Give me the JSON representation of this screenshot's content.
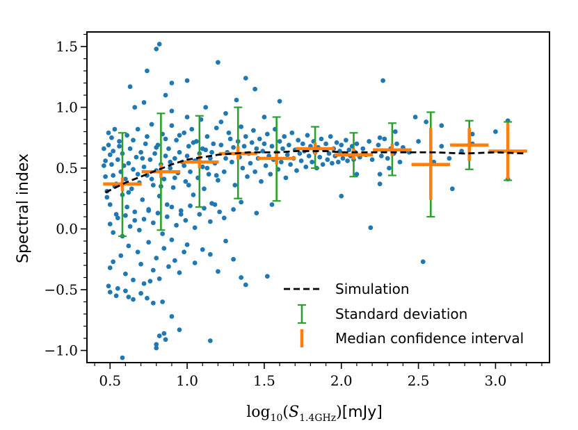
{
  "chart_data": {
    "type": "scatter",
    "title": "",
    "xlabel": "log10(S1.4GHz)[mJy]",
    "xlabel_parts": {
      "main": "log",
      "base": "10",
      "paren_open": "(",
      "symbol": "S",
      "sub": "1.4GHz",
      "paren_close": ")",
      "unit": "[mJy]"
    },
    "ylabel": "Spectral index",
    "xlim": [
      0.35,
      3.35
    ],
    "ylim": [
      -1.1,
      1.62
    ],
    "x_ticks": [
      0.5,
      1.0,
      1.5,
      2.0,
      2.5,
      3.0
    ],
    "x_tick_labels": [
      "0.5",
      "1.0",
      "1.5",
      "2.0",
      "2.5",
      "3.0"
    ],
    "y_ticks": [
      -1.0,
      -0.5,
      0.0,
      0.5,
      1.0,
      1.5
    ],
    "y_tick_labels": [
      "−1.0",
      "−0.5",
      "0.0",
      "0.5",
      "1.0",
      "1.5"
    ],
    "grid": false,
    "legend_position": "lower-right",
    "colors": {
      "points": "#1f77b4",
      "simulation": "#000000",
      "std": "#2ca02c",
      "median": "#ff7f0e"
    },
    "scatter_points": [
      [
        0.46,
        0.66
      ],
      [
        0.47,
        0.56
      ],
      [
        0.48,
        0.31
      ],
      [
        0.48,
        0.26
      ],
      [
        0.49,
        0.69
      ],
      [
        0.5,
        0.2
      ],
      [
        0.5,
        0.61
      ],
      [
        0.51,
        0.75
      ],
      [
        0.51,
        0.53
      ],
      [
        0.52,
        0.44
      ],
      [
        0.53,
        0.35
      ],
      [
        0.53,
        0.82
      ],
      [
        0.54,
        0.12
      ],
      [
        0.55,
        0.57
      ],
      [
        0.56,
        0.72
      ],
      [
        0.57,
        0.47
      ],
      [
        0.58,
        0.28
      ],
      [
        0.58,
        0.62
      ],
      [
        0.6,
        0.41
      ],
      [
        0.61,
        0.77
      ],
      [
        0.61,
        0.18
      ],
      [
        0.62,
        0.54
      ],
      [
        0.63,
        0.66
      ],
      [
        0.64,
        0.33
      ],
      [
        0.65,
        0.49
      ],
      [
        0.66,
        0.07
      ],
      [
        0.67,
        0.59
      ],
      [
        0.68,
        0.82
      ],
      [
        0.69,
        0.38
      ],
      [
        0.7,
        0.63
      ],
      [
        0.71,
        0.24
      ],
      [
        0.72,
        0.51
      ],
      [
        0.73,
        0.7
      ],
      [
        0.74,
        0.44
      ],
      [
        0.75,
        0.15
      ],
      [
        0.76,
        0.57
      ],
      [
        0.77,
        0.86
      ],
      [
        0.78,
        0.36
      ],
      [
        0.79,
        0.62
      ],
      [
        0.8,
        0.48
      ],
      [
        0.81,
        0.69
      ],
      [
        0.82,
        0.27
      ],
      [
        0.83,
        0.53
      ],
      [
        0.84,
        0.78
      ],
      [
        0.85,
        0.41
      ],
      [
        0.86,
        0.6
      ],
      [
        0.87,
        0.2
      ],
      [
        0.88,
        0.66
      ],
      [
        0.89,
        0.5
      ],
      [
        0.9,
        0.85
      ],
      [
        0.91,
        0.34
      ],
      [
        0.92,
        0.58
      ],
      [
        0.93,
        0.73
      ],
      [
        0.94,
        0.46
      ],
      [
        0.95,
        0.63
      ],
      [
        0.96,
        0.12
      ],
      [
        0.97,
        0.55
      ],
      [
        0.98,
        0.79
      ],
      [
        0.99,
        0.39
      ],
      [
        1.0,
        0.6
      ],
      [
        1.01,
        0.68
      ],
      [
        1.02,
        0.47
      ],
      [
        1.03,
        0.82
      ],
      [
        1.04,
        0.28
      ],
      [
        1.05,
        0.56
      ],
      [
        1.06,
        0.72
      ],
      [
        1.07,
        0.42
      ],
      [
        1.08,
        0.62
      ],
      [
        1.09,
        0.9
      ],
      [
        1.1,
        0.51
      ],
      [
        1.11,
        0.33
      ],
      [
        1.12,
        0.65
      ],
      [
        1.13,
        0.76
      ],
      [
        1.14,
        0.45
      ],
      [
        1.15,
        0.58
      ],
      [
        1.16,
        0.21
      ],
      [
        1.17,
        0.7
      ],
      [
        1.18,
        0.54
      ],
      [
        1.19,
        0.83
      ],
      [
        1.2,
        0.4
      ],
      [
        0.46,
        0.52
      ],
      [
        0.47,
        0.43
      ],
      [
        0.49,
        0.79
      ],
      [
        0.52,
        0.64
      ],
      [
        0.54,
        0.37
      ],
      [
        0.56,
        0.68
      ],
      [
        0.59,
        0.52
      ],
      [
        0.62,
        0.3
      ],
      [
        0.65,
        0.73
      ],
      [
        0.68,
        0.45
      ],
      [
        0.71,
        0.58
      ],
      [
        0.74,
        0.76
      ],
      [
        0.77,
        0.41
      ],
      [
        0.8,
        0.67
      ],
      [
        0.83,
        0.35
      ],
      [
        0.86,
        0.74
      ],
      [
        0.89,
        0.55
      ],
      [
        0.92,
        0.42
      ],
      [
        0.95,
        0.77
      ],
      [
        0.98,
        0.52
      ],
      [
        1.01,
        0.36
      ],
      [
        1.04,
        0.71
      ],
      [
        1.07,
        0.57
      ],
      [
        1.1,
        0.66
      ],
      [
        1.13,
        0.5
      ],
      [
        1.16,
        0.63
      ],
      [
        1.19,
        0.44
      ],
      [
        1.22,
        0.69
      ],
      [
        1.25,
        0.58
      ],
      [
        1.28,
        0.74
      ],
      [
        1.22,
        0.88
      ],
      [
        1.24,
        0.47
      ],
      [
        1.26,
        0.63
      ],
      [
        1.27,
        0.79
      ],
      [
        1.29,
        0.55
      ],
      [
        1.3,
        0.67
      ],
      [
        1.31,
        0.36
      ],
      [
        1.33,
        0.72
      ],
      [
        1.34,
        0.59
      ],
      [
        1.35,
        0.84
      ],
      [
        1.36,
        0.5
      ],
      [
        1.37,
        0.68
      ],
      [
        1.38,
        0.76
      ],
      [
        1.39,
        0.43
      ],
      [
        1.4,
        0.62
      ],
      [
        1.41,
        0.54
      ],
      [
        1.42,
        0.71
      ],
      [
        1.43,
        0.81
      ],
      [
        1.44,
        0.47
      ],
      [
        1.45,
        0.66
      ],
      [
        1.46,
        0.58
      ],
      [
        1.47,
        0.74
      ],
      [
        1.48,
        0.39
      ],
      [
        1.49,
        0.64
      ],
      [
        1.5,
        0.7
      ],
      [
        1.51,
        0.52
      ],
      [
        1.52,
        0.78
      ],
      [
        1.53,
        0.6
      ],
      [
        1.54,
        0.45
      ],
      [
        1.55,
        0.68
      ],
      [
        1.56,
        0.57
      ],
      [
        1.57,
        0.82
      ],
      [
        1.58,
        0.63
      ],
      [
        1.59,
        0.49
      ],
      [
        1.6,
        0.72
      ],
      [
        1.61,
        0.55
      ],
      [
        1.62,
        0.66
      ],
      [
        1.63,
        0.76
      ],
      [
        1.64,
        0.42
      ],
      [
        1.65,
        0.61
      ],
      [
        1.66,
        0.69
      ],
      [
        1.67,
        0.53
      ],
      [
        1.68,
        0.79
      ],
      [
        1.69,
        0.58
      ],
      [
        1.7,
        0.65
      ],
      [
        1.71,
        0.48
      ],
      [
        1.72,
        0.73
      ],
      [
        1.73,
        0.62
      ],
      [
        1.74,
        0.56
      ],
      [
        1.75,
        0.7
      ],
      [
        1.76,
        0.64
      ],
      [
        1.77,
        0.51
      ],
      [
        1.78,
        0.77
      ],
      [
        1.79,
        0.6
      ],
      [
        1.8,
        0.68
      ],
      [
        1.81,
        0.55
      ],
      [
        1.82,
        0.72
      ],
      [
        1.83,
        0.63
      ],
      [
        1.84,
        0.5
      ],
      [
        1.85,
        0.67
      ],
      [
        1.86,
        0.59
      ],
      [
        1.87,
        0.74
      ],
      [
        1.88,
        0.53
      ],
      [
        1.89,
        0.65
      ],
      [
        1.9,
        0.7
      ],
      [
        1.91,
        0.57
      ],
      [
        1.92,
        0.62
      ],
      [
        1.93,
        0.76
      ],
      [
        1.94,
        0.54
      ],
      [
        1.95,
        0.66
      ],
      [
        1.96,
        0.6
      ],
      [
        1.97,
        0.71
      ],
      [
        1.98,
        0.55
      ],
      [
        1.99,
        0.64
      ],
      [
        2.0,
        0.69
      ],
      [
        2.01,
        0.58
      ],
      [
        2.02,
        0.62
      ],
      [
        2.03,
        0.73
      ],
      [
        2.04,
        0.56
      ],
      [
        2.05,
        0.65
      ],
      [
        2.06,
        0.6
      ],
      [
        2.07,
        0.68
      ],
      [
        2.08,
        0.57
      ],
      [
        2.09,
        0.63
      ],
      [
        2.1,
        0.7
      ],
      [
        2.12,
        0.59
      ],
      [
        2.14,
        0.66
      ],
      [
        2.16,
        0.61
      ],
      [
        2.18,
        0.72
      ],
      [
        2.2,
        0.57
      ],
      [
        2.22,
        0.64
      ],
      [
        2.24,
        0.69
      ],
      [
        2.26,
        0.6
      ],
      [
        2.28,
        0.74
      ],
      [
        2.3,
        0.58
      ],
      [
        2.32,
        0.66
      ],
      [
        2.34,
        0.62
      ],
      [
        2.36,
        0.7
      ],
      [
        2.38,
        0.55
      ],
      [
        2.4,
        0.67
      ],
      [
        2.25,
        0.45
      ],
      [
        2.31,
        0.5
      ],
      [
        2.35,
        0.8
      ],
      [
        2.44,
        0.63
      ],
      [
        2.5,
        0.72
      ],
      [
        2.6,
        0.55
      ],
      [
        2.65,
        0.68
      ],
      [
        2.7,
        0.58
      ],
      [
        2.78,
        0.64
      ],
      [
        2.85,
        0.7
      ],
      [
        0.5,
        0.04
      ],
      [
        0.52,
        -0.03
      ],
      [
        0.55,
        0.09
      ],
      [
        0.58,
        -0.06
      ],
      [
        0.6,
        0.11
      ],
      [
        0.63,
        0.02
      ],
      [
        0.66,
        0.14
      ],
      [
        0.69,
        -0.01
      ],
      [
        0.72,
        0.08
      ],
      [
        0.75,
        0.16
      ],
      [
        0.78,
        0.05
      ],
      [
        0.81,
        0.13
      ],
      [
        0.84,
        -0.04
      ],
      [
        0.87,
        0.1
      ],
      [
        0.9,
        0.18
      ],
      [
        0.93,
        0.03
      ],
      [
        0.96,
        0.15
      ],
      [
        0.99,
        0.07
      ],
      [
        1.02,
        0.19
      ],
      [
        1.05,
        0.01
      ],
      [
        1.08,
        0.12
      ],
      [
        1.11,
        0.17
      ],
      [
        1.15,
        0.06
      ],
      [
        1.18,
        0.2
      ],
      [
        1.21,
        0.14
      ],
      [
        1.24,
        0.09
      ],
      [
        1.3,
        0.16
      ],
      [
        1.35,
        0.22
      ],
      [
        1.45,
        0.13
      ],
      [
        1.55,
        0.2
      ],
      [
        0.5,
        -0.32
      ],
      [
        0.52,
        -0.27
      ],
      [
        0.55,
        -0.49
      ],
      [
        0.57,
        -0.22
      ],
      [
        0.6,
        -0.37
      ],
      [
        0.62,
        -0.14
      ],
      [
        0.65,
        -0.42
      ],
      [
        0.68,
        -0.19
      ],
      [
        0.7,
        -0.29
      ],
      [
        0.72,
        -0.45
      ],
      [
        0.75,
        -0.11
      ],
      [
        0.78,
        -0.34
      ],
      [
        0.8,
        -0.24
      ],
      [
        0.82,
        -0.41
      ],
      [
        0.85,
        -0.16
      ],
      [
        0.88,
        -0.31
      ],
      [
        0.9,
        -0.09
      ],
      [
        0.92,
        -0.26
      ],
      [
        0.95,
        -0.36
      ],
      [
        0.98,
        -0.19
      ],
      [
        1.0,
        -0.13
      ],
      [
        1.05,
        -0.28
      ],
      [
        1.1,
        -0.17
      ],
      [
        1.15,
        -0.21
      ],
      [
        1.2,
        -0.35
      ],
      [
        1.25,
        -0.1
      ],
      [
        1.3,
        -0.25
      ],
      [
        1.35,
        -0.4
      ],
      [
        1.38,
        -0.46
      ],
      [
        1.52,
        -0.39
      ],
      [
        0.49,
        -0.47
      ],
      [
        0.5,
        -0.52
      ],
      [
        0.54,
        -0.55
      ],
      [
        0.6,
        -0.51
      ],
      [
        0.62,
        -0.56
      ],
      [
        0.65,
        -0.58
      ],
      [
        0.7,
        -0.53
      ],
      [
        0.74,
        -0.57
      ],
      [
        0.76,
        -0.43
      ],
      [
        0.8,
        -0.95
      ],
      [
        0.82,
        -0.88
      ],
      [
        0.86,
        -0.91
      ],
      [
        0.9,
        -0.72
      ],
      [
        0.95,
        -0.83
      ],
      [
        1.15,
        -0.92
      ],
      [
        0.58,
        -1.06
      ],
      [
        0.8,
        -0.98
      ],
      [
        0.85,
        -0.86
      ],
      [
        0.78,
        -0.61
      ],
      [
        0.84,
        -0.6
      ],
      [
        0.8,
        1.48
      ],
      [
        0.82,
        1.52
      ],
      [
        0.74,
        1.3
      ],
      [
        0.86,
        1.1
      ],
      [
        0.9,
        1.2
      ],
      [
        1.2,
        1.37
      ],
      [
        1.38,
        1.24
      ],
      [
        1.44,
        1.15
      ],
      [
        1.0,
        1.22
      ],
      [
        1.32,
        1.06
      ],
      [
        0.63,
        1.17
      ],
      [
        0.66,
        1.0
      ],
      [
        0.72,
        1.04
      ],
      [
        0.9,
        0.97
      ],
      [
        1.0,
        0.92
      ],
      [
        1.12,
        1.0
      ],
      [
        1.25,
        0.95
      ],
      [
        1.5,
        0.92
      ],
      [
        1.6,
        1.05
      ],
      [
        2.27,
        1.22
      ],
      [
        2.48,
        0.92
      ],
      [
        2.25,
        0.75
      ],
      [
        2.55,
        0.88
      ],
      [
        2.65,
        0.85
      ],
      [
        2.72,
        0.33
      ],
      [
        2.53,
        -0.27
      ],
      [
        2.19,
        0.01
      ],
      [
        2.0,
        0.27
      ],
      [
        2.85,
        0.78
      ],
      [
        3.0,
        0.8
      ],
      [
        3.08,
        0.89
      ],
      [
        3.08,
        0.41
      ],
      [
        2.1,
        0.45
      ],
      [
        2.25,
        0.37
      ]
    ],
    "simulation": {
      "name": "Simulation",
      "x": [
        0.47,
        0.6,
        0.7,
        0.8,
        0.9,
        1.0,
        1.1,
        1.2,
        1.3,
        1.4,
        1.5,
        1.6,
        1.7,
        1.8,
        1.9,
        2.0,
        2.2,
        2.4,
        2.6,
        2.8,
        3.0,
        3.2
      ],
      "y": [
        0.3,
        0.38,
        0.43,
        0.48,
        0.53,
        0.57,
        0.59,
        0.61,
        0.62,
        0.63,
        0.63,
        0.63,
        0.64,
        0.64,
        0.64,
        0.63,
        0.63,
        0.63,
        0.63,
        0.62,
        0.63,
        0.62
      ]
    },
    "standard_deviation": {
      "name": "Standard deviation",
      "x": [
        0.58,
        0.83,
        1.08,
        1.33,
        1.58,
        1.83,
        2.08,
        2.33,
        2.58,
        2.83,
        3.08
      ],
      "y": [
        0.37,
        0.47,
        0.55,
        0.62,
        0.58,
        0.66,
        0.61,
        0.65,
        0.53,
        0.69,
        0.64
      ],
      "lower": [
        -0.06,
        -0.01,
        0.18,
        0.25,
        0.23,
        0.5,
        0.43,
        0.44,
        0.1,
        0.49,
        0.4
      ],
      "upper": [
        0.79,
        0.95,
        0.93,
        1.0,
        0.92,
        0.84,
        0.79,
        0.87,
        0.96,
        0.89,
        0.88
      ]
    },
    "median_confidence_interval": {
      "name": "Median confidence interval",
      "x": [
        0.58,
        0.83,
        1.08,
        1.33,
        1.58,
        1.83,
        2.08,
        2.33,
        2.58,
        2.83,
        3.08
      ],
      "y": [
        0.37,
        0.47,
        0.55,
        0.62,
        0.58,
        0.66,
        0.61,
        0.65,
        0.53,
        0.69,
        0.64
      ],
      "lower": [
        0.31,
        0.42,
        0.5,
        0.57,
        0.53,
        0.61,
        0.57,
        0.6,
        0.24,
        0.56,
        0.41
      ],
      "upper": [
        0.42,
        0.53,
        0.61,
        0.68,
        0.63,
        0.71,
        0.66,
        0.7,
        0.83,
        0.83,
        0.87
      ],
      "x_half_width": 0.125
    },
    "legend": [
      "Simulation",
      "Standard deviation",
      "Median confidence interval"
    ]
  }
}
